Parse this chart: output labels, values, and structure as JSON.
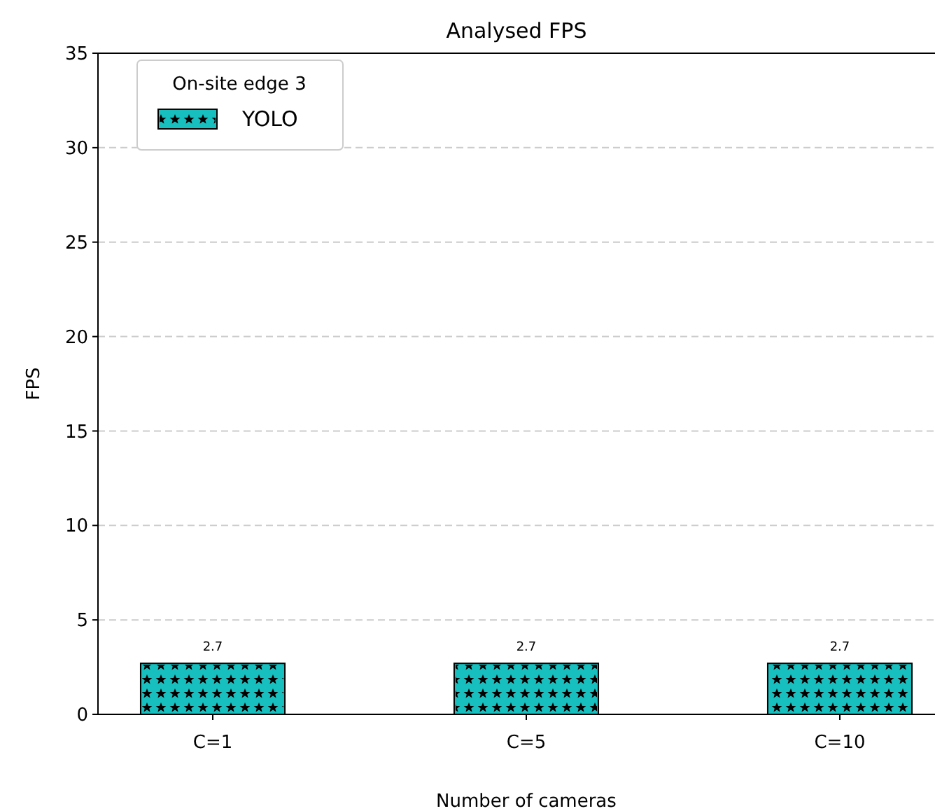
{
  "chart_data": {
    "type": "bar",
    "title": "Analysed FPS",
    "xlabel": "Number of cameras",
    "ylabel": "FPS",
    "categories": [
      "C=1",
      "C=5",
      "C=10"
    ],
    "series": [
      {
        "name": "YOLO",
        "color": "#17bfbf",
        "values": [
          2.7,
          2.7,
          2.7
        ]
      }
    ],
    "ylim": [
      0,
      35
    ],
    "yticks": [
      0,
      5,
      10,
      15,
      20,
      25,
      30,
      35
    ],
    "grid": "y",
    "legend": "top left",
    "legend_title": "On-site edge 3",
    "data_labels": true
  }
}
